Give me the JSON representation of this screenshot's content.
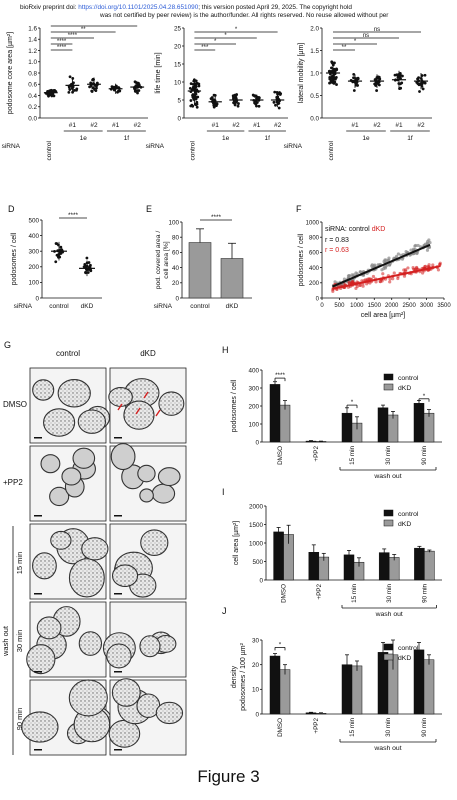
{
  "banner": {
    "prefix": "bioRxiv preprint doi: ",
    "doi": "https://doi.org/10.1101/2025.04.28.651090",
    "rest1": "; this version posted April 29, 2025. The copyright hold",
    "line2": "was not certified by peer review) is the author/funder. All rights reserved. No reuse allowed without per"
  },
  "figure_title": "Figure 3",
  "panels": {
    "A": "A",
    "B": "B",
    "C": "C",
    "D": "D",
    "E": "E",
    "F": "F",
    "G": "G",
    "H": "H",
    "I": "I",
    "J": "J"
  },
  "colors": {
    "control": "#111111",
    "dKD": "#9a9a9a",
    "red": "#d42020",
    "grey_points": "#888888"
  },
  "chart_data": [
    {
      "panel": "A",
      "type": "scatter",
      "ylabel": "podosome core area [µm²]",
      "ylim": [
        0,
        1.6
      ],
      "yticks": [
        "0.0",
        "0.2",
        "0.4",
        "0.6",
        "0.8",
        "1.0",
        "1.2",
        "1.4",
        "1.6"
      ],
      "categories": [
        "control",
        "#1",
        "#2",
        "#1",
        "#2"
      ],
      "groups": [
        {
          "label": "1e",
          "from": 1,
          "to": 2
        },
        {
          "label": "1f",
          "from": 3,
          "to": 4
        }
      ],
      "row_label": "siRNA",
      "means": [
        0.45,
        0.58,
        0.6,
        0.52,
        0.55
      ],
      "sd": [
        0.05,
        0.12,
        0.12,
        0.09,
        0.1
      ],
      "significance": [
        "****",
        "****",
        "****",
        "**",
        "***"
      ]
    },
    {
      "panel": "B",
      "type": "scatter",
      "ylabel": "life time [min]",
      "ylim": [
        0,
        25
      ],
      "yticks": [
        "0",
        "5",
        "10",
        "15",
        "20",
        "25"
      ],
      "categories": [
        "control",
        "#1",
        "#2",
        "#1",
        "#2"
      ],
      "groups": [
        {
          "label": "1e",
          "from": 1,
          "to": 2
        },
        {
          "label": "1f",
          "from": 3,
          "to": 4
        }
      ],
      "row_label": "siRNA",
      "means": [
        7.5,
        4.5,
        5,
        5,
        5
      ],
      "sd": [
        3.5,
        1.5,
        1.5,
        1.5,
        2
      ],
      "significance": [
        "***",
        "*",
        "*",
        "*"
      ]
    },
    {
      "panel": "C",
      "type": "scatter",
      "ylabel": "lateral mobility [µm]",
      "ylim": [
        0,
        2.0
      ],
      "yticks": [
        "0.0",
        "0.5",
        "1.0",
        "1.5",
        "2.0"
      ],
      "categories": [
        "control",
        "#1",
        "#2",
        "#1",
        "#2"
      ],
      "groups": [
        {
          "label": "1e",
          "from": 1,
          "to": 2
        },
        {
          "label": "1f",
          "from": 3,
          "to": 4
        }
      ],
      "row_label": "siRNA",
      "means": [
        1.0,
        0.82,
        0.82,
        0.85,
        0.82
      ],
      "sd": [
        0.25,
        0.15,
        0.15,
        0.2,
        0.18
      ],
      "significance": [
        "**",
        "*",
        "ns",
        "ns"
      ]
    },
    {
      "panel": "D",
      "type": "scatter",
      "ylabel": "podosomes / cell",
      "ylim": [
        0,
        500
      ],
      "yticks": [
        "0",
        "100",
        "200",
        "300",
        "400",
        "500"
      ],
      "categories": [
        "control",
        "dKD"
      ],
      "row_label": "siRNA",
      "means": [
        300,
        190
      ],
      "sd": [
        60,
        50
      ],
      "significance": [
        "****"
      ]
    },
    {
      "panel": "E",
      "type": "bar",
      "ylabel": "pod. covered area / cell area [%]",
      "ylim": [
        0,
        100
      ],
      "yticks": [
        "0",
        "20",
        "40",
        "60",
        "80",
        "100"
      ],
      "categories": [
        "control",
        "dKD"
      ],
      "row_label": "siRNA",
      "values": [
        73,
        52
      ],
      "sd": [
        18,
        20
      ],
      "significance": [
        "****"
      ]
    },
    {
      "panel": "F",
      "type": "scatter",
      "xlabel": "cell area [µm²]",
      "ylabel": "podosomes / cell",
      "xlim": [
        0,
        3500
      ],
      "ylim": [
        0,
        1000
      ],
      "xticks": [
        "0",
        "500",
        "1000",
        "1500",
        "2000",
        "2500",
        "3000",
        "3500"
      ],
      "yticks": [
        "0",
        "200",
        "400",
        "600",
        "800",
        "1000"
      ],
      "legend": {
        "prefix": "siRNA: ",
        "control": "control",
        "dKD": "dKD"
      },
      "r_control": "r = 0.83",
      "r_dKD": "r = 0.63",
      "series": [
        {
          "name": "control",
          "fit": [
            [
              300,
              150
            ],
            [
              3100,
              700
            ]
          ]
        },
        {
          "name": "dKD",
          "fit": [
            [
              300,
              120
            ],
            [
              3400,
              420
            ]
          ]
        }
      ]
    },
    {
      "panel": "H",
      "type": "bar",
      "ylabel": "podosomes / cell",
      "ylim": [
        0,
        400
      ],
      "yticks": [
        "0",
        "100",
        "200",
        "300",
        "400"
      ],
      "categories": [
        "DMSO",
        "+PP2",
        "15 min",
        "30 min",
        "90 min"
      ],
      "group_label": "wash out",
      "series": [
        {
          "name": "control",
          "values": [
            320,
            5,
            160,
            190,
            215
          ],
          "sd": [
            15,
            3,
            30,
            15,
            15
          ]
        },
        {
          "name": "dKD",
          "values": [
            205,
            3,
            105,
            150,
            160
          ],
          "sd": [
            25,
            2,
            35,
            20,
            20
          ]
        }
      ],
      "significance": [
        "****",
        "*",
        "*"
      ]
    },
    {
      "panel": "I",
      "type": "bar",
      "ylabel": "cell area [µm²]",
      "ylim": [
        0,
        2000
      ],
      "yticks": [
        "0",
        "500",
        "1000",
        "1500",
        "2000"
      ],
      "categories": [
        "DMSO",
        "+PP2",
        "15 min",
        "30 min",
        "90 min"
      ],
      "group_label": "wash out",
      "series": [
        {
          "name": "control",
          "values": [
            1300,
            750,
            680,
            740,
            860
          ],
          "sd": [
            120,
            200,
            120,
            100,
            50
          ]
        },
        {
          "name": "dKD",
          "values": [
            1230,
            620,
            480,
            610,
            780
          ],
          "sd": [
            250,
            100,
            120,
            80,
            30
          ]
        }
      ]
    },
    {
      "panel": "J",
      "type": "bar",
      "ylabel": "density podosomes / 100 µm²",
      "ylim": [
        0,
        30
      ],
      "yticks": [
        "0",
        "10",
        "20",
        "30"
      ],
      "categories": [
        "DMSO",
        "+PP2",
        "15 min",
        "30 min",
        "90 min"
      ],
      "group_label": "wash out",
      "series": [
        {
          "name": "control",
          "values": [
            23.5,
            0.5,
            20,
            25,
            26
          ],
          "sd": [
            1,
            0.2,
            4,
            4,
            3
          ]
        },
        {
          "name": "dKD",
          "values": [
            18,
            0.3,
            19.5,
            24,
            22
          ],
          "sd": [
            2,
            0.2,
            2,
            6,
            2
          ]
        }
      ],
      "significance": [
        "*"
      ]
    }
  ],
  "panel_g": {
    "col_labels": [
      "control",
      "dKD"
    ],
    "row_labels": [
      "DMSO",
      "+PP2",
      "15 min",
      "30 min",
      "90 min"
    ],
    "side_label": "wash out"
  }
}
